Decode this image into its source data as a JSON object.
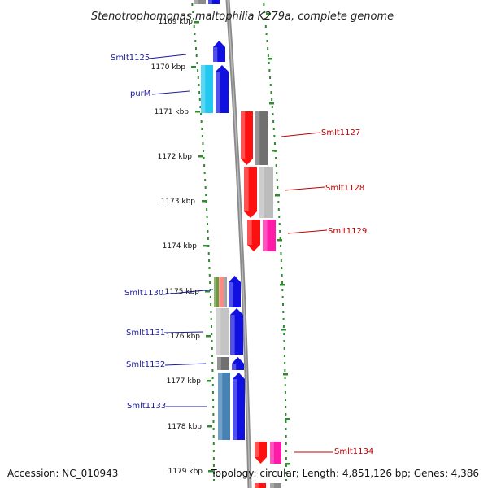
{
  "title": "Stenotrophomonas maltophilia K279a, complete genome",
  "footer": {
    "accession": "Accession: NC_010943",
    "summary": "Topology: circular; Length: 4,851,126 bp; Genes: 4,386"
  },
  "colors": {
    "ruler": "#2e8b2e",
    "backbone": "#8a8a8a",
    "forward_label": "#1a1aa0",
    "reverse_label": "#c00000"
  },
  "ruler_labels": [
    "1169 kbp",
    "1170 kbp",
    "1171 kbp",
    "1172 kbp",
    "1173 kbp",
    "1174 kbp",
    "1175 kbp",
    "1176 kbp",
    "1177 kbp",
    "1178 kbp",
    "1179 kbp"
  ],
  "gene_labels": [
    {
      "text": "Smlt1125",
      "strand": "forward"
    },
    {
      "text": "purM",
      "strand": "forward"
    },
    {
      "text": "Smlt1127",
      "strand": "reverse"
    },
    {
      "text": "Smlt1128",
      "strand": "reverse"
    },
    {
      "text": "Smlt1129",
      "strand": "reverse"
    },
    {
      "text": "Smlt1130",
      "strand": "forward"
    },
    {
      "text": "Smlt1131",
      "strand": "forward"
    },
    {
      "text": "Smlt1132",
      "strand": "forward"
    },
    {
      "text": "Smlt1133",
      "strand": "forward"
    },
    {
      "text": "Smlt1134",
      "strand": "reverse"
    }
  ]
}
